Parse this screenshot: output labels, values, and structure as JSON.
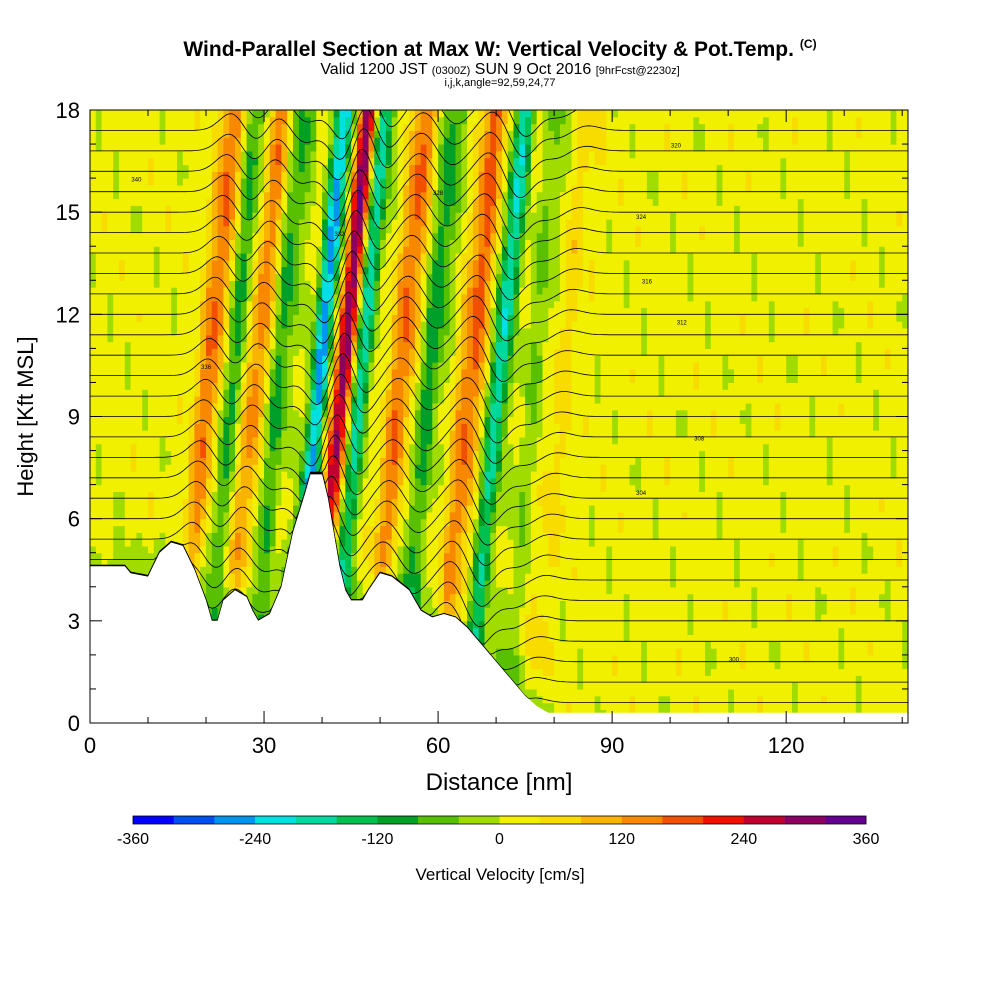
{
  "title": {
    "main": "Wind-Parallel Section at Max W: Vertical Velocity & Pot.Temp.",
    "copyright": "(C)",
    "valid": "Valid 1200 JST",
    "valid_z": "(0300Z)",
    "date": "SUN 9 Oct 2016",
    "forecast": "[9hrFcst@2230z]",
    "params": "i,j,k,angle=92,59,24,77"
  },
  "colorbar": {
    "label": "Vertical Velocity [cm/s]",
    "tick_labels": [
      "-360",
      "-240",
      "-120",
      "0",
      "120",
      "240",
      "360"
    ],
    "colors": [
      "#0000ff",
      "#0050f0",
      "#0096f0",
      "#00e0e0",
      "#00d8a0",
      "#00c050",
      "#00a028",
      "#58c000",
      "#a0dc00",
      "#f0f000",
      "#f8dc00",
      "#f8b400",
      "#f88800",
      "#f05000",
      "#f01000",
      "#c00030",
      "#8c0060",
      "#640090"
    ]
  },
  "chart_data": {
    "type": "heatmap",
    "title": "Wind-Parallel Section at Max W: Vertical Velocity & Pot.Temp.",
    "xlabel": "Distance [nm]",
    "ylabel": "Height [Kft MSL]",
    "xlim": [
      0,
      141
    ],
    "ylim": [
      0,
      18
    ],
    "x_ticks": [
      0,
      30,
      60,
      90,
      120
    ],
    "y_ticks": [
      0,
      3,
      6,
      9,
      12,
      15,
      18
    ],
    "colorbar_label": "Vertical Velocity [cm/s]",
    "colorbar_range": [
      -360,
      360
    ],
    "terrain_profile": [
      [
        0,
        4.6
      ],
      [
        6,
        4.6
      ],
      [
        7,
        4.4
      ],
      [
        10,
        4.3
      ],
      [
        12,
        5.0
      ],
      [
        14,
        5.3
      ],
      [
        16,
        5.2
      ],
      [
        18,
        4.5
      ],
      [
        20,
        3.6
      ],
      [
        21,
        3.0
      ],
      [
        22,
        3.0
      ],
      [
        23,
        3.6
      ],
      [
        25,
        3.9
      ],
      [
        27,
        3.7
      ],
      [
        28,
        3.3
      ],
      [
        29,
        3.0
      ],
      [
        31,
        3.2
      ],
      [
        33,
        4.0
      ],
      [
        35,
        5.6
      ],
      [
        37,
        6.7
      ],
      [
        38,
        7.3
      ],
      [
        40,
        7.3
      ],
      [
        41,
        6.6
      ],
      [
        42,
        5.6
      ],
      [
        43,
        4.6
      ],
      [
        44,
        3.9
      ],
      [
        45,
        3.6
      ],
      [
        47,
        3.6
      ],
      [
        48,
        3.9
      ],
      [
        50,
        4.4
      ],
      [
        52,
        4.3
      ],
      [
        55,
        3.9
      ],
      [
        57,
        3.3
      ],
      [
        59,
        3.1
      ],
      [
        61,
        3.2
      ],
      [
        63,
        3.1
      ],
      [
        65,
        2.8
      ],
      [
        67,
        2.4
      ],
      [
        69,
        2.0
      ],
      [
        71,
        1.6
      ],
      [
        73,
        1.2
      ],
      [
        75,
        0.8
      ],
      [
        77,
        0.5
      ],
      [
        79,
        0.3
      ],
      [
        141,
        0.3
      ]
    ],
    "series": [
      {
        "peak_x": 20,
        "peak_w": 150
      },
      {
        "peak_x": 24,
        "peak_w": -110
      },
      {
        "peak_x": 28,
        "peak_w": 130
      },
      {
        "peak_x": 32,
        "peak_w": -110
      },
      {
        "peak_x": 39,
        "peak_w": -270
      },
      {
        "peak_x": 43,
        "peak_w": 300
      },
      {
        "peak_x": 46,
        "peak_w": -210
      },
      {
        "peak_x": 53,
        "peak_w": 150
      },
      {
        "peak_x": 58,
        "peak_w": -120
      },
      {
        "peak_x": 65,
        "peak_w": 160
      },
      {
        "peak_x": 70,
        "peak_w": -220
      },
      {
        "peak_x": 76,
        "peak_w": -60
      },
      {
        "peak_x": 81,
        "peak_w": 40
      }
    ],
    "contour_labels": [
      "340",
      "336",
      "332",
      "328",
      "324",
      "320",
      "316",
      "312",
      "308",
      "304",
      "300"
    ],
    "grid": false
  }
}
